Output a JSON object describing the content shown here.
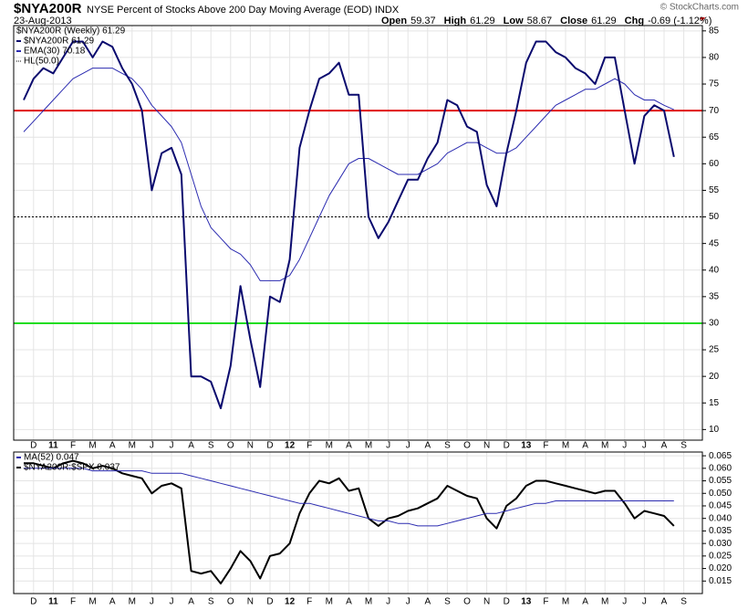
{
  "header": {
    "symbol": "$NYA200R",
    "description": "NYSE Percent of Stocks Above 200 Day Moving Average (EOD) INDX",
    "date": "23-Aug-2013",
    "copyright": "© StockCharts.com",
    "quote": [
      {
        "label": "Open",
        "value": "59.37"
      },
      {
        "label": "High",
        "value": "61.29"
      },
      {
        "label": "Low",
        "value": "58.67"
      },
      {
        "label": "Close",
        "value": "61.29"
      },
      {
        "label": "Chg",
        "value": "-0.69 (-1.12%)"
      }
    ]
  },
  "chart_data": [
    {
      "type": "line",
      "title": "$NYA200R (Weekly) 61.29",
      "categories": [
        null,
        "D",
        null,
        "11",
        null,
        "F",
        null,
        "M",
        null,
        "A",
        null,
        "M",
        null,
        "J",
        null,
        "J",
        null,
        "A",
        null,
        "S",
        null,
        "O",
        null,
        "N",
        null,
        "D",
        null,
        "12",
        null,
        "F",
        null,
        "M",
        null,
        "A",
        null,
        "M",
        null,
        "J",
        null,
        "J",
        null,
        "A",
        null,
        "S",
        null,
        "O",
        null,
        "N",
        null,
        "D",
        null,
        "13",
        null,
        "F",
        null,
        "M",
        null,
        "A",
        null,
        "M",
        null,
        "J",
        null,
        "J",
        null,
        "A",
        null,
        "S"
      ],
      "series": [
        {
          "name": "EMA(30) 70.18",
          "color": "#2b2bb0",
          "width": 1,
          "values": [
            66,
            68,
            70,
            72,
            74,
            76,
            77,
            78,
            78,
            78,
            77,
            76,
            74,
            71,
            69,
            67,
            64,
            58,
            52,
            48,
            46,
            44,
            43,
            41,
            38,
            38,
            38,
            39,
            42,
            46,
            50,
            54,
            57,
            60,
            61,
            61,
            60,
            59,
            58,
            58,
            58,
            59,
            60,
            62,
            63,
            64,
            64,
            63,
            62,
            62,
            63,
            65,
            67,
            69,
            71,
            72,
            73,
            74,
            74,
            75,
            76,
            75,
            73,
            72,
            72,
            71,
            70.18,
            null
          ]
        },
        {
          "name": "$NYA200R 61.29",
          "color": "#0a0a6e",
          "width": 2,
          "values": [
            72,
            76,
            78,
            77,
            80,
            83,
            83,
            80,
            83,
            82,
            78,
            75,
            70,
            55,
            62,
            63,
            58,
            20,
            20,
            19,
            14,
            22,
            37,
            27,
            18,
            35,
            34,
            42,
            63,
            70,
            76,
            77,
            79,
            73,
            73,
            50,
            46,
            49,
            53,
            57,
            57,
            61,
            64,
            72,
            71,
            67,
            66,
            56,
            52,
            62,
            70,
            79,
            83,
            83,
            81,
            80,
            78,
            77,
            75,
            80,
            80,
            70,
            60,
            69,
            71,
            70,
            61.29,
            null
          ]
        }
      ],
      "hl": {
        "name": "HL(50.0)",
        "value": 50,
        "color": "#000000"
      },
      "reference_lines": [
        {
          "value": 70,
          "color": "#e01010"
        },
        {
          "value": 30,
          "color": "#22dd22"
        }
      ],
      "ylim": [
        8,
        86
      ],
      "yticks": [
        10,
        15,
        20,
        25,
        30,
        35,
        40,
        45,
        50,
        55,
        60,
        65,
        70,
        75,
        80,
        85
      ],
      "grid": true
    },
    {
      "type": "line",
      "categories": [
        null,
        "D",
        null,
        "11",
        null,
        "F",
        null,
        "M",
        null,
        "A",
        null,
        "M",
        null,
        "J",
        null,
        "J",
        null,
        "A",
        null,
        "S",
        null,
        "O",
        null,
        "N",
        null,
        "D",
        null,
        "12",
        null,
        "F",
        null,
        "M",
        null,
        "A",
        null,
        "M",
        null,
        "J",
        null,
        "J",
        null,
        "A",
        null,
        "S",
        null,
        "O",
        null,
        "N",
        null,
        "D",
        null,
        "13",
        null,
        "F",
        null,
        "M",
        null,
        "A",
        null,
        "M",
        null,
        "J",
        null,
        "J",
        null,
        "A",
        null,
        "S"
      ],
      "series": [
        {
          "name": "$NYA200R:$SPX 0.037",
          "color": "#000000",
          "width": 2,
          "values": [
            0.062,
            0.062,
            0.061,
            0.06,
            0.062,
            0.063,
            0.062,
            0.06,
            0.061,
            0.06,
            0.058,
            0.057,
            0.056,
            0.05,
            0.053,
            0.054,
            0.052,
            0.019,
            0.018,
            0.019,
            0.014,
            0.02,
            0.027,
            0.023,
            0.016,
            0.025,
            0.026,
            0.03,
            0.042,
            0.05,
            0.055,
            0.054,
            0.056,
            0.051,
            0.052,
            0.04,
            0.037,
            0.04,
            0.041,
            0.043,
            0.044,
            0.046,
            0.048,
            0.053,
            0.051,
            0.049,
            0.048,
            0.04,
            0.036,
            0.045,
            0.048,
            0.053,
            0.055,
            0.055,
            0.054,
            0.053,
            0.052,
            0.051,
            0.05,
            0.051,
            0.051,
            0.046,
            0.04,
            0.043,
            0.042,
            0.041,
            0.037,
            null
          ]
        },
        {
          "name": "MA(52) 0.047",
          "color": "#2b2bb0",
          "width": 1,
          "values": [
            0.06,
            0.06,
            0.06,
            0.06,
            0.06,
            0.06,
            0.06,
            0.059,
            0.059,
            0.059,
            0.059,
            0.059,
            0.059,
            0.058,
            0.058,
            0.058,
            0.058,
            0.057,
            0.056,
            0.055,
            0.054,
            0.053,
            0.052,
            0.051,
            0.05,
            0.049,
            0.048,
            0.047,
            0.046,
            0.046,
            0.045,
            0.044,
            0.043,
            0.042,
            0.041,
            0.04,
            0.039,
            0.039,
            0.038,
            0.038,
            0.037,
            0.037,
            0.037,
            0.038,
            0.039,
            0.04,
            0.041,
            0.042,
            0.042,
            0.043,
            0.044,
            0.045,
            0.046,
            0.046,
            0.047,
            0.047,
            0.047,
            0.047,
            0.047,
            0.047,
            0.047,
            0.047,
            0.047,
            0.047,
            0.047,
            0.047,
            0.047,
            null
          ]
        }
      ],
      "ylim": [
        0.01,
        0.0665
      ],
      "yticks": [
        0.015,
        {
          "value": 0.02,
          "label": "0.020"
        },
        0.025,
        {
          "value": 0.03,
          "label": "0.030"
        },
        0.035,
        {
          "value": 0.04,
          "label": "0.040"
        },
        0.045,
        {
          "value": 0.05,
          "label": "0.050"
        },
        0.055,
        {
          "value": 0.06,
          "label": "0.060"
        },
        0.065
      ],
      "grid": true
    }
  ]
}
